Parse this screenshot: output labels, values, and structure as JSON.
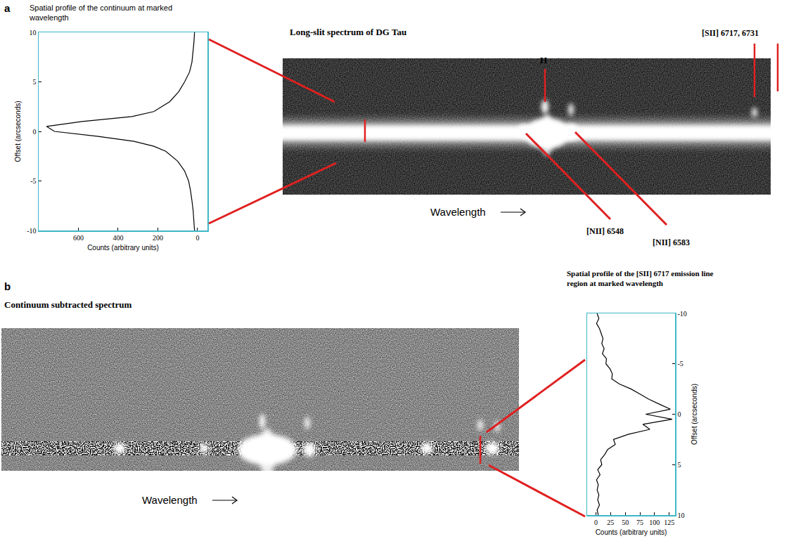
{
  "figure": {
    "panels": [
      {
        "letter": "a",
        "spectrum": {
          "title": "Long-slit spectrum of DG Tau",
          "lines": [
            "H",
            "[SII] 6717, 6731",
            "[NII] 6548",
            "[NII] 6583"
          ],
          "axis_label": "Wavelength"
        }
      },
      {
        "letter": "b",
        "spectrum": {
          "title": "Continuum subtracted spectrum",
          "axis_label": "Wavelength"
        }
      }
    ]
  },
  "chart_data": [
    {
      "type": "line",
      "title": "Spatial profile of the continuum at marked wavelength",
      "x_label": "Counts (arbitrary units)",
      "y_label": "Offset (arcseconds)",
      "color": "#000000",
      "grid": false,
      "offsets": [
        -10,
        -9,
        -8,
        -7,
        -6,
        -5,
        -4,
        -3,
        -2,
        -1.5,
        -1,
        -0.5,
        0,
        0.5,
        1,
        1.5,
        2,
        3,
        4,
        5,
        6,
        7,
        8,
        9,
        10
      ],
      "counts": [
        15,
        18,
        22,
        28,
        35,
        45,
        65,
        100,
        160,
        220,
        320,
        500,
        720,
        760,
        580,
        330,
        220,
        140,
        95,
        65,
        40,
        28,
        22,
        18,
        15
      ],
      "xlim": [
        800,
        -50
      ],
      "xticks": [
        600,
        400,
        200,
        0
      ],
      "ylim": [
        -10,
        10
      ],
      "yticks": [
        -10,
        -5,
        0,
        5,
        10
      ]
    },
    {
      "type": "line",
      "title": "Spatial profile of the [SII] 6717 emission line region at marked wavelength",
      "x_label": "Counts (arbitrary units)",
      "y_label": "Offset (arcseconds)",
      "color": "#000000",
      "grid": false,
      "offsets": [
        -10,
        -9.5,
        -9,
        -8.5,
        -8,
        -7.5,
        -7,
        -6.5,
        -6,
        -5.5,
        -5,
        -4.5,
        -4,
        -3.5,
        -3,
        -2.5,
        -2,
        -1.5,
        -1,
        -0.5,
        0,
        0.5,
        1,
        1.5,
        2,
        2.5,
        3,
        3.5,
        4,
        4.5,
        5,
        5.5,
        6,
        6.5,
        7,
        7.5,
        8,
        8.5,
        9,
        9.5,
        10
      ],
      "counts": [
        2,
        5,
        1,
        6,
        9,
        12,
        10,
        14,
        11,
        18,
        17,
        24,
        28,
        27,
        40,
        60,
        75,
        90,
        108,
        127,
        85,
        130,
        80,
        92,
        55,
        30,
        33,
        20,
        15,
        8,
        10,
        3,
        7,
        1,
        4,
        2,
        5,
        3,
        6,
        2,
        4
      ],
      "xlim": [
        -15,
        135
      ],
      "xticks": [
        0,
        25,
        50,
        75,
        100,
        125
      ],
      "ylim": [
        10,
        -10
      ],
      "yticks": [
        -10,
        -5,
        0,
        5,
        10
      ]
    }
  ]
}
